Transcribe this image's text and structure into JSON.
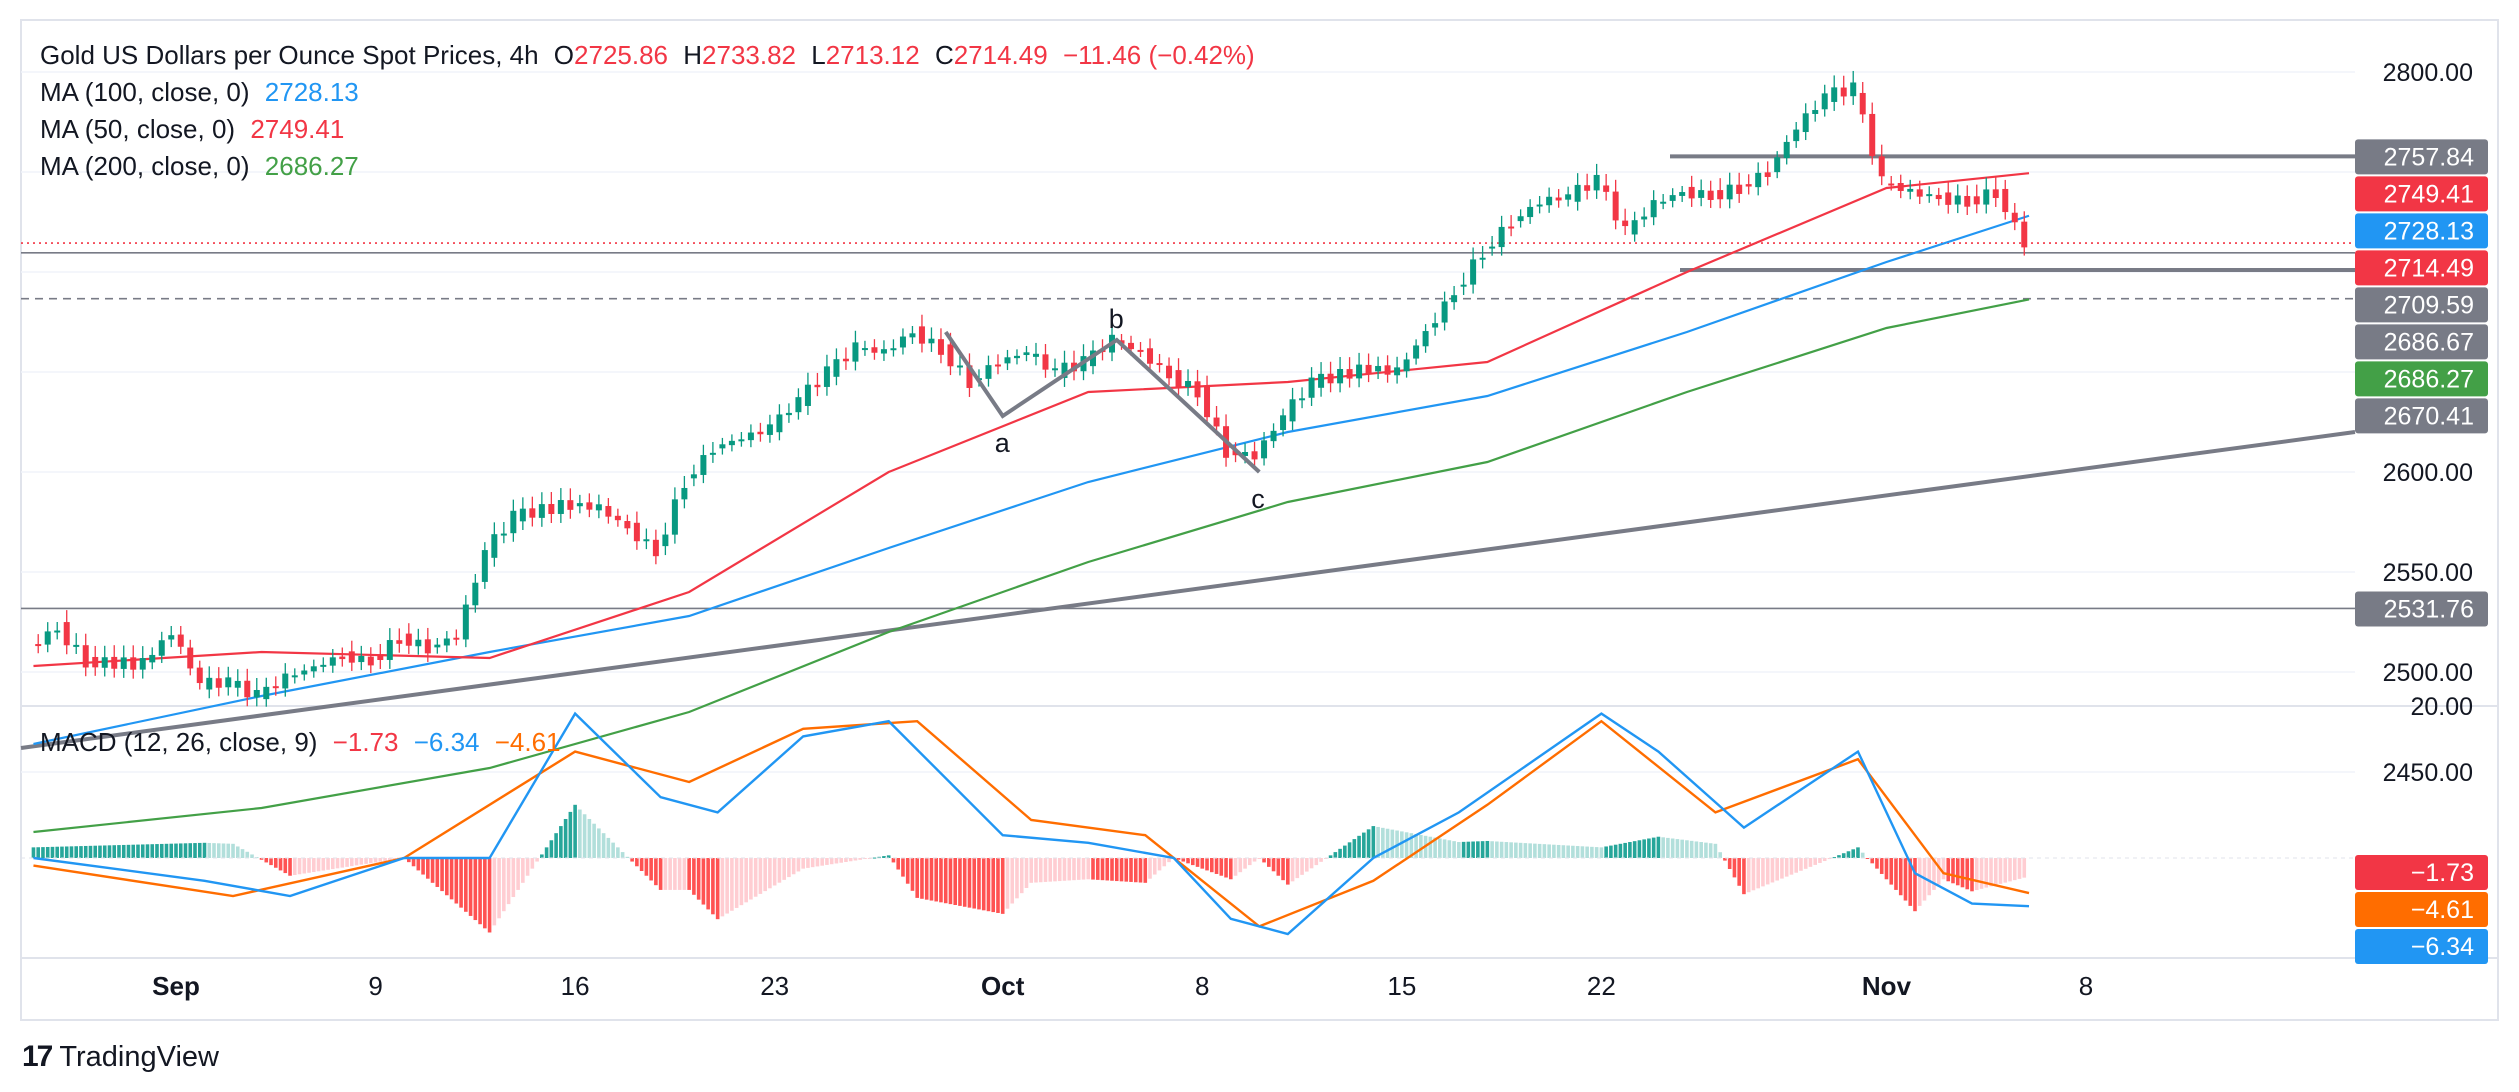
{
  "header": {
    "title": "Gold US Dollars per Ounce Spot Prices, 4h",
    "ohlc": {
      "o_label": "O",
      "o": "2725.86",
      "h_label": "H",
      "h": "2733.82",
      "l_label": "L",
      "l": "2713.12",
      "c_label": "C",
      "c": "2714.49",
      "change": "−11.46 (−0.42%)"
    },
    "ma": [
      {
        "label": "MA (100, close, 0)",
        "value": "2728.13",
        "color": "#2196f3"
      },
      {
        "label": "MA (50, close, 0)",
        "value": "2749.41",
        "color": "#f23645"
      },
      {
        "label": "MA (200, close, 0)",
        "value": "2686.27",
        "color": "#43a047"
      }
    ],
    "macd": {
      "label": "MACD (12, 26, close, 9)",
      "hist": "−1.73",
      "macd": "−6.34",
      "signal": "−4.61"
    }
  },
  "colors": {
    "up": "#089981",
    "down": "#f23645",
    "ma100": "#2196f3",
    "ma50": "#f23645",
    "ma200": "#43a047",
    "macd": "#2196f3",
    "signal": "#ff6d00",
    "hist_up_strong": "#26a69a",
    "hist_up_weak": "#b2dfdb",
    "hist_dn_strong": "#ff5252",
    "hist_dn_weak": "#ffcdd2",
    "trend": "#787b86"
  },
  "chart_data": {
    "type": "candlestick",
    "timeframe": "4h",
    "x_ticks": [
      "Sep",
      "9",
      "16",
      "23",
      "Oct",
      "8",
      "15",
      "22",
      "Nov",
      "8"
    ],
    "price_axis_ticks": [
      "2800.00",
      "2600.00",
      "2550.00",
      "2500.00",
      "2450.00"
    ],
    "price_labels": [
      {
        "value": "2757.84",
        "color": "#787b86"
      },
      {
        "value": "2749.41",
        "color": "#f23645"
      },
      {
        "value": "2728.13",
        "color": "#2196f3"
      },
      {
        "value": "2714.49",
        "color": "#f23645"
      },
      {
        "value": "2709.59",
        "color": "#787b86"
      },
      {
        "value": "2686.67",
        "color": "#787b86"
      },
      {
        "value": "2686.27",
        "color": "#43a047"
      },
      {
        "value": "2670.41",
        "color": "#787b86"
      },
      {
        "value": "2531.76",
        "color": "#787b86"
      }
    ],
    "price_series": [
      [
        "Aug 28",
        2512
      ],
      [
        "Aug 29",
        2522
      ],
      [
        "Aug 30",
        2505
      ],
      [
        "Sep 1",
        2504
      ],
      [
        "Sep 2",
        2520
      ],
      [
        "Sep 3",
        2494
      ],
      [
        "Sep 4",
        2495
      ],
      [
        "Sep 5",
        2488
      ],
      [
        "Sep 6",
        2497
      ],
      [
        "Sep 8",
        2508
      ],
      [
        "Sep 9",
        2505
      ],
      [
        "Sep 10",
        2517
      ],
      [
        "Sep 11",
        2512
      ],
      [
        "Sep 12",
        2518
      ],
      [
        "Sep 13",
        2560
      ],
      [
        "Sep 14",
        2578
      ],
      [
        "Sep 16",
        2584
      ],
      [
        "Sep 17",
        2582
      ],
      [
        "Sep 18",
        2572
      ],
      [
        "Sep 19",
        2560
      ],
      [
        "Sep 20",
        2595
      ],
      [
        "Sep 21",
        2612
      ],
      [
        "Sep 23",
        2622
      ],
      [
        "Sep 24",
        2636
      ],
      [
        "Sep 25",
        2650
      ],
      [
        "Sep 26",
        2662
      ],
      [
        "Sep 27",
        2660
      ],
      [
        "Sep 28",
        2670
      ],
      [
        "Sep 29",
        2661
      ],
      [
        "Sep 30",
        2645
      ],
      [
        "Oct 1",
        2655
      ],
      [
        "Oct 2",
        2660
      ],
      [
        "Oct 3",
        2650
      ],
      [
        "Oct 4",
        2655
      ],
      [
        "Oct 5",
        2666
      ],
      [
        "Oct 6",
        2660
      ],
      [
        "Oct 7",
        2648
      ],
      [
        "Oct 8",
        2640
      ],
      [
        "Oct 9",
        2610
      ],
      [
        "Oct 10",
        2608
      ],
      [
        "Oct 11",
        2628
      ],
      [
        "Oct 12",
        2645
      ],
      [
        "Oct 14",
        2652
      ],
      [
        "Oct 15",
        2650
      ],
      [
        "Oct 16",
        2670
      ],
      [
        "Oct 17",
        2690
      ],
      [
        "Oct 18",
        2710
      ],
      [
        "Oct 19",
        2725
      ],
      [
        "Oct 20",
        2735
      ],
      [
        "Oct 21",
        2738
      ],
      [
        "Oct 22",
        2746
      ],
      [
        "Oct 23",
        2720
      ],
      [
        "Oct 24",
        2734
      ],
      [
        "Oct 25",
        2740
      ],
      [
        "Oct 26",
        2738
      ],
      [
        "Oct 27",
        2742
      ],
      [
        "Oct 28",
        2750
      ],
      [
        "Oct 29",
        2772
      ],
      [
        "Oct 30",
        2788
      ],
      [
        "Oct 31",
        2792
      ],
      [
        "Nov 1",
        2745
      ],
      [
        "Nov 2",
        2740
      ],
      [
        "Nov 3",
        2737
      ],
      [
        "Nov 4",
        2735
      ],
      [
        "Nov 5",
        2740
      ],
      [
        "Nov 6",
        2714.49
      ]
    ],
    "ma100": [
      [
        "Aug 28",
        2464
      ],
      [
        "Sep 5",
        2488
      ],
      [
        "Sep 13",
        2510
      ],
      [
        "Sep 20",
        2528
      ],
      [
        "Sep 27",
        2562
      ],
      [
        "Oct 4",
        2595
      ],
      [
        "Oct 11",
        2620
      ],
      [
        "Oct 18",
        2638
      ],
      [
        "Oct 25",
        2670
      ],
      [
        "Nov 1",
        2705
      ],
      [
        "Nov 6",
        2728.13
      ]
    ],
    "ma50": [
      [
        "Aug 28",
        2503
      ],
      [
        "Sep 5",
        2510
      ],
      [
        "Sep 13",
        2507
      ],
      [
        "Sep 20",
        2540
      ],
      [
        "Sep 27",
        2600
      ],
      [
        "Oct 4",
        2640
      ],
      [
        "Oct 11",
        2645
      ],
      [
        "Oct 18",
        2655
      ],
      [
        "Oct 25",
        2700
      ],
      [
        "Nov 1",
        2742
      ],
      [
        "Nov 6",
        2749.41
      ]
    ],
    "ma200": [
      [
        "Aug 28",
        2420
      ],
      [
        "Sep 5",
        2432
      ],
      [
        "Sep 13",
        2452
      ],
      [
        "Sep 20",
        2480
      ],
      [
        "Sep 27",
        2520
      ],
      [
        "Oct 4",
        2555
      ],
      [
        "Oct 11",
        2585
      ],
      [
        "Oct 18",
        2605
      ],
      [
        "Oct 25",
        2640
      ],
      [
        "Nov 1",
        2672
      ],
      [
        "Nov 6",
        2686.27
      ]
    ],
    "horizontal_levels": [
      2757.84,
      2714.49,
      2709.59,
      2686.67,
      2531.76
    ],
    "trendline": {
      "from": [
        "Aug 28",
        2462
      ],
      "to": [
        "Nov 16",
        2610
      ]
    },
    "abc_pattern": [
      {
        "label": "",
        "date": "Sep 29",
        "price": 2670
      },
      {
        "label": "a",
        "date": "Oct 1",
        "price": 2628
      },
      {
        "label": "b",
        "date": "Oct 5",
        "price": 2666
      },
      {
        "label": "c",
        "date": "Oct 10",
        "price": 2600
      }
    ],
    "macd_axis_ticks": [
      "20.00"
    ],
    "macd_series": [
      [
        "Aug 28",
        0
      ],
      [
        "Sep 3",
        -3
      ],
      [
        "Sep 6",
        -5
      ],
      [
        "Sep 10",
        0
      ],
      [
        "Sep 13",
        0
      ],
      [
        "Sep 16",
        19
      ],
      [
        "Sep 19",
        8
      ],
      [
        "Sep 21",
        6
      ],
      [
        "Sep 24",
        16
      ],
      [
        "Sep 27",
        18
      ],
      [
        "Oct 1",
        3
      ],
      [
        "Oct 4",
        2
      ],
      [
        "Oct 7",
        0
      ],
      [
        "Oct 9",
        -8
      ],
      [
        "Oct 11",
        -10
      ],
      [
        "Oct 14",
        0
      ],
      [
        "Oct 17",
        6
      ],
      [
        "Oct 22",
        19
      ],
      [
        "Oct 24",
        14
      ],
      [
        "Oct 27",
        4
      ],
      [
        "Oct 31",
        14
      ],
      [
        "Nov 2",
        -2
      ],
      [
        "Nov 4",
        -6
      ],
      [
        "Nov 6",
        -6.34
      ]
    ],
    "signal_series": [
      [
        "Aug 28",
        -1
      ],
      [
        "Sep 4",
        -5
      ],
      [
        "Sep 10",
        0
      ],
      [
        "Sep 16",
        14
      ],
      [
        "Sep 20",
        10
      ],
      [
        "Sep 24",
        17
      ],
      [
        "Sep 28",
        18
      ],
      [
        "Oct 2",
        5
      ],
      [
        "Oct 6",
        3
      ],
      [
        "Oct 10",
        -9
      ],
      [
        "Oct 14",
        -3
      ],
      [
        "Oct 18",
        7
      ],
      [
        "Oct 22",
        18
      ],
      [
        "Oct 26",
        6
      ],
      [
        "Oct 31",
        13
      ],
      [
        "Nov 3",
        -2
      ],
      [
        "Nov 6",
        -4.61
      ]
    ]
  }
}
